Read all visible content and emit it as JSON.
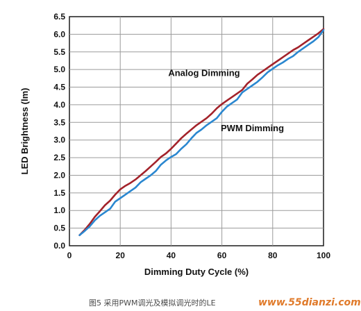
{
  "chart_data": {
    "type": "line",
    "xlabel": "Dimming Duty Cycle (%)",
    "ylabel": "LED Brightness (lm)",
    "xlim": [
      0,
      100
    ],
    "ylim": [
      0,
      6.5
    ],
    "xticks": [
      0,
      20,
      40,
      60,
      80,
      100
    ],
    "yticks": [
      0.0,
      0.5,
      1.0,
      1.5,
      2.0,
      2.5,
      3.0,
      3.5,
      4.0,
      4.5,
      5.0,
      5.5,
      6.0,
      6.5
    ],
    "grid": true,
    "series": [
      {
        "name": "Analog Dimming",
        "color": "#a3222a",
        "x": [
          4,
          6,
          8,
          10,
          12,
          14,
          16,
          18,
          20,
          22,
          24,
          26,
          28,
          30,
          32,
          34,
          36,
          38,
          40,
          42,
          44,
          46,
          48,
          50,
          52,
          54,
          56,
          58,
          60,
          62,
          64,
          66,
          68,
          70,
          72,
          74,
          76,
          78,
          80,
          82,
          84,
          86,
          88,
          90,
          92,
          94,
          96,
          98,
          100
        ],
        "y": [
          0.3,
          0.45,
          0.62,
          0.82,
          0.98,
          1.15,
          1.28,
          1.45,
          1.6,
          1.7,
          1.78,
          1.88,
          2.0,
          2.12,
          2.25,
          2.38,
          2.52,
          2.62,
          2.75,
          2.9,
          3.05,
          3.18,
          3.3,
          3.42,
          3.52,
          3.62,
          3.75,
          3.9,
          4.02,
          4.12,
          4.22,
          4.32,
          4.42,
          4.6,
          4.72,
          4.85,
          4.95,
          5.05,
          5.15,
          5.25,
          5.35,
          5.45,
          5.55,
          5.63,
          5.73,
          5.83,
          5.93,
          6.03,
          6.15
        ]
      },
      {
        "name": "PWM Dimming",
        "color": "#2a87d0",
        "x": [
          4,
          6,
          8,
          10,
          12,
          14,
          16,
          18,
          20,
          22,
          24,
          26,
          28,
          30,
          32,
          34,
          36,
          38,
          40,
          42,
          44,
          46,
          48,
          50,
          52,
          54,
          56,
          58,
          60,
          62,
          64,
          66,
          68,
          70,
          72,
          74,
          76,
          78,
          80,
          82,
          84,
          86,
          88,
          90,
          92,
          94,
          96,
          98,
          100
        ],
        "y": [
          0.3,
          0.42,
          0.55,
          0.72,
          0.85,
          0.95,
          1.05,
          1.25,
          1.35,
          1.45,
          1.55,
          1.65,
          1.8,
          1.9,
          2.0,
          2.12,
          2.3,
          2.42,
          2.52,
          2.6,
          2.75,
          2.88,
          3.05,
          3.2,
          3.3,
          3.42,
          3.52,
          3.62,
          3.8,
          3.95,
          4.05,
          4.15,
          4.35,
          4.45,
          4.55,
          4.65,
          4.78,
          4.92,
          5.02,
          5.12,
          5.2,
          5.3,
          5.38,
          5.5,
          5.6,
          5.7,
          5.8,
          5.92,
          6.12
        ]
      }
    ],
    "annotations": [
      {
        "text": "Analog Dimming",
        "x": 53,
        "y": 4.82
      },
      {
        "text": "PWM Dimming",
        "x": 72,
        "y": 3.25
      }
    ]
  },
  "caption": "图5 采用PWM调光及模拟调光时的LE",
  "watermark": "www.55dianzi.com"
}
